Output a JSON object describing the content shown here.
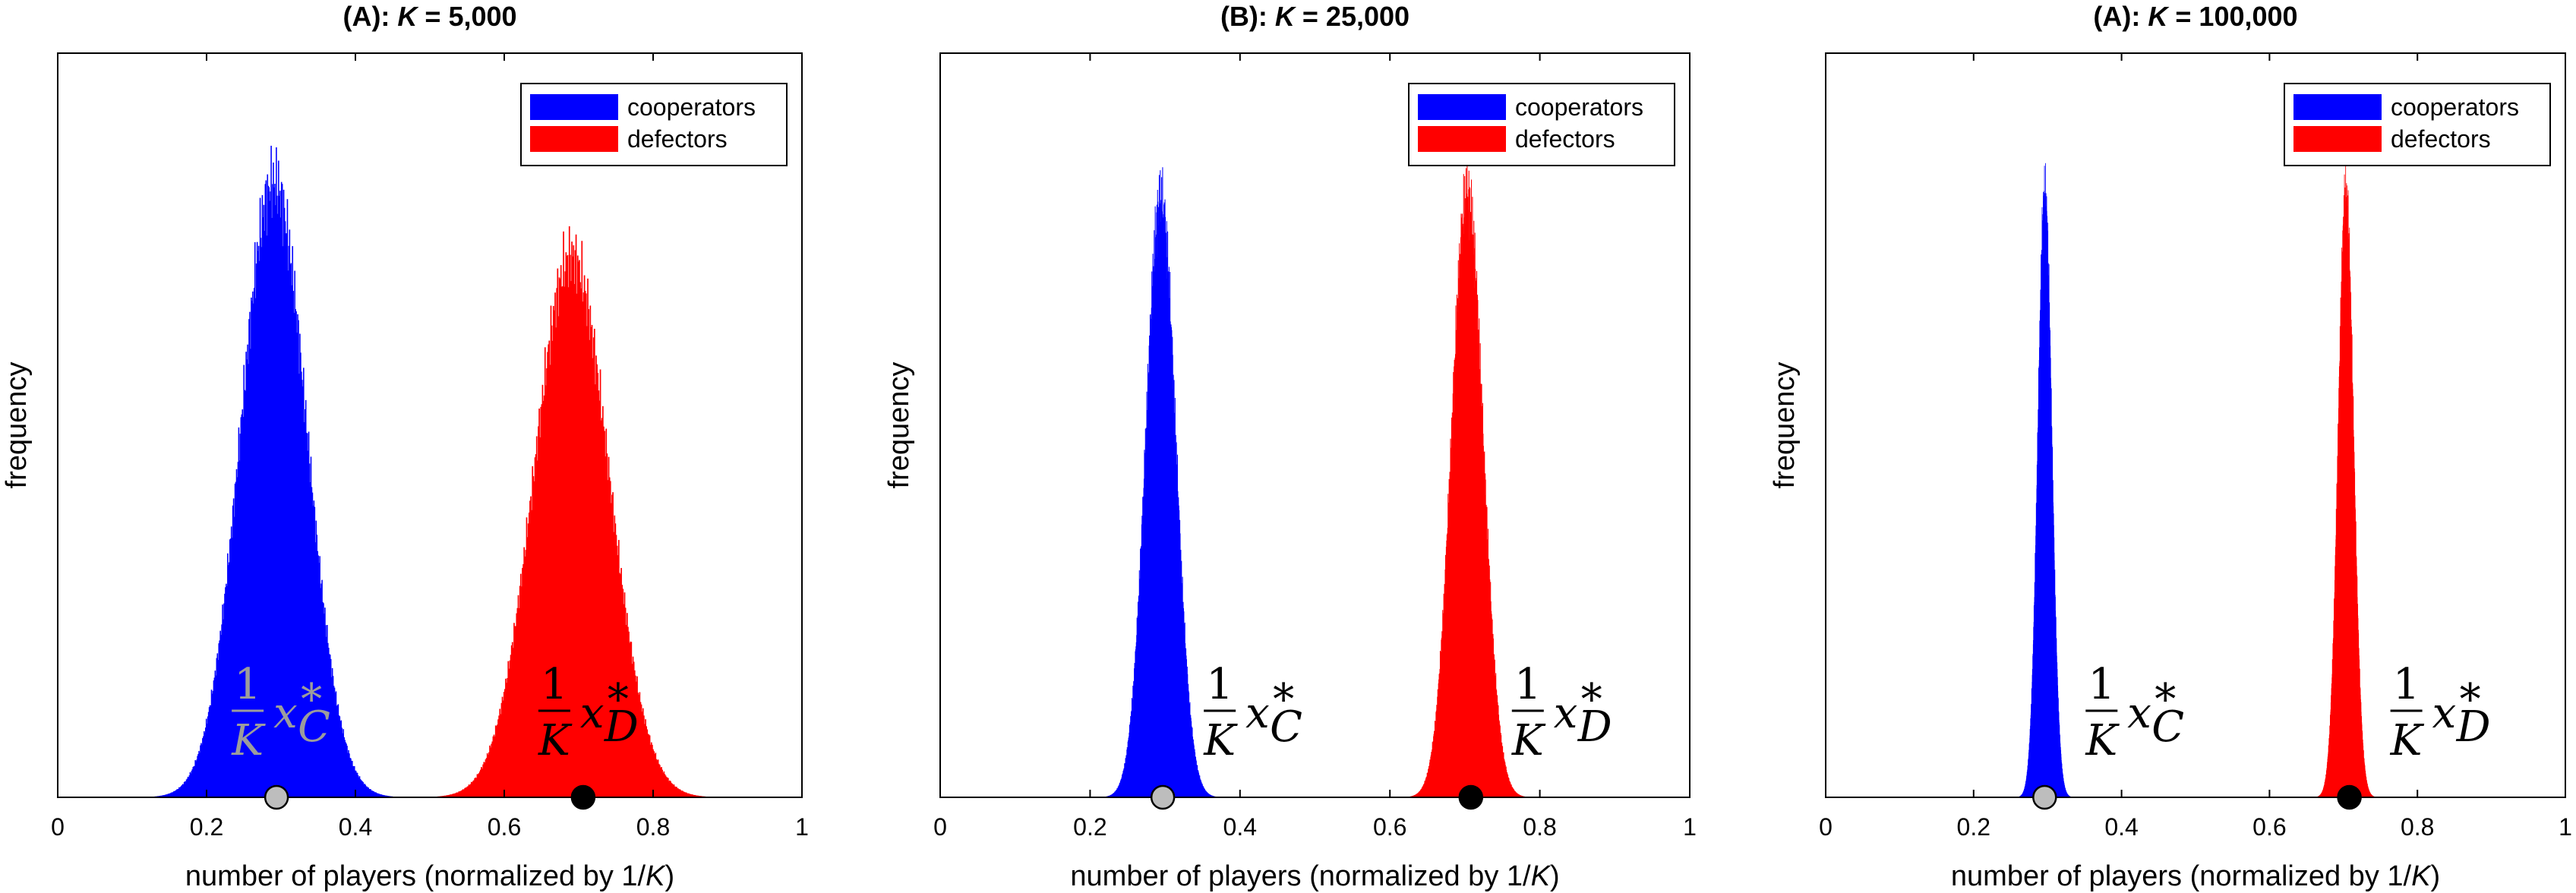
{
  "chart_data": [
    {
      "type": "bar",
      "title_prefix": "(A): ",
      "title_var": "K",
      "title_suffix": " = 5,000",
      "xlabel_text": "number of players (normalized by 1/",
      "xlabel_var": "K",
      "xlabel_close": ")",
      "ylabel": "frequency",
      "xlim": [
        0,
        1
      ],
      "xticks": [
        "0",
        "0.2",
        "0.4",
        "0.6",
        "0.8",
        "1"
      ],
      "legend": [
        {
          "label": "cooperators",
          "color": "#0000ff"
        },
        {
          "label": "defectors",
          "color": "#ff0000"
        }
      ],
      "legend_position": "top-right",
      "series": [
        {
          "name": "cooperators",
          "color": "#0000ff",
          "mean": 0.29,
          "sd": 0.044,
          "peak": 1.0
        },
        {
          "name": "defectors",
          "color": "#ff0000",
          "mean": 0.69,
          "sd": 0.05,
          "peak": 0.88
        }
      ],
      "markers": [
        {
          "x": 0.294,
          "fill": "#bdbdbd",
          "label_var": "x",
          "label_sub": "C",
          "label_sup": "*",
          "label_frac_num": "1",
          "label_frac_den": "K",
          "label_color": "#9c9c9c"
        },
        {
          "x": 0.706,
          "fill": "#000000",
          "label_var": "x",
          "label_sub": "D",
          "label_sup": "*",
          "label_frac_num": "1",
          "label_frac_den": "K",
          "label_color": "#000000"
        }
      ]
    },
    {
      "type": "bar",
      "title_prefix": "(B): ",
      "title_var": "K",
      "title_suffix": " = 25,000",
      "xlabel_text": "number of players (normalized by 1/",
      "xlabel_var": "K",
      "xlabel_close": ")",
      "ylabel": "frequency",
      "xlim": [
        0,
        1
      ],
      "xticks": [
        "0",
        "0.2",
        "0.4",
        "0.6",
        "0.8",
        "1"
      ],
      "legend": [
        {
          "label": "cooperators",
          "color": "#0000ff"
        },
        {
          "label": "defectors",
          "color": "#ff0000"
        }
      ],
      "legend_position": "top-right",
      "series": [
        {
          "name": "cooperators",
          "color": "#0000ff",
          "mean": 0.294,
          "sd": 0.02,
          "peak": 0.97
        },
        {
          "name": "defectors",
          "color": "#ff0000",
          "mean": 0.703,
          "sd": 0.021,
          "peak": 0.98
        }
      ],
      "markers": [
        {
          "x": 0.297,
          "fill": "#bdbdbd",
          "label_var": "x",
          "label_sub": "C",
          "label_sup": "*",
          "label_frac_num": "1",
          "label_frac_den": "K",
          "label_color": "#000000"
        },
        {
          "x": 0.708,
          "fill": "#000000",
          "label_var": "x",
          "label_sub": "D",
          "label_sup": "*",
          "label_frac_num": "1",
          "label_frac_den": "K",
          "label_color": "#000000"
        }
      ]
    },
    {
      "type": "bar",
      "title_prefix": "(A): ",
      "title_var": "K",
      "title_suffix": " = 100,000",
      "xlabel_text": "number of players (normalized by 1/",
      "xlabel_var": "K",
      "xlabel_close": ")",
      "ylabel": "frequency",
      "xlim": [
        0,
        1
      ],
      "xticks": [
        "0",
        "0.2",
        "0.4",
        "0.6",
        "0.8",
        "1"
      ],
      "legend": [
        {
          "label": "cooperators",
          "color": "#0000ff"
        },
        {
          "label": "defectors",
          "color": "#ff0000"
        }
      ],
      "legend_position": "top-right",
      "series": [
        {
          "name": "cooperators",
          "color": "#0000ff",
          "mean": 0.296,
          "sd": 0.0095,
          "peak": 0.97
        },
        {
          "name": "defectors",
          "color": "#ff0000",
          "mean": 0.703,
          "sd": 0.0105,
          "peak": 0.97
        }
      ],
      "markers": [
        {
          "x": 0.296,
          "fill": "#bdbdbd",
          "label_var": "x",
          "label_sub": "C",
          "label_sup": "*",
          "label_frac_num": "1",
          "label_frac_den": "K",
          "label_color": "#000000"
        },
        {
          "x": 0.708,
          "fill": "#000000",
          "label_var": "x",
          "label_sub": "D",
          "label_sup": "*",
          "label_frac_num": "1",
          "label_frac_den": "K",
          "label_color": "#000000"
        }
      ]
    }
  ]
}
